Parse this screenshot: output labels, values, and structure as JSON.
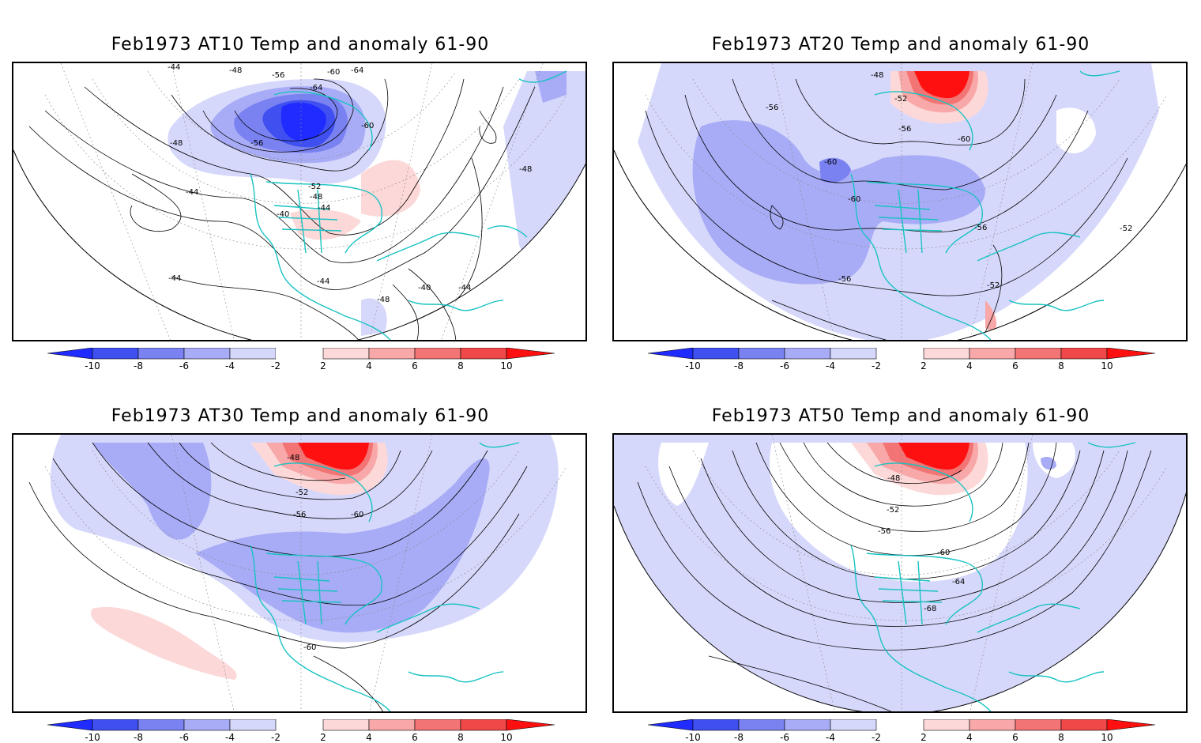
{
  "palette": {
    "neg10": "#1f2bff",
    "neg8": "#4050f0",
    "neg6": "#7a82f2",
    "neg4": "#a8acf6",
    "neg2": "#d6d8fb",
    "zero": "#ffffff",
    "pos2": "#fcd8d8",
    "pos4": "#f8a8a8",
    "pos6": "#f27474",
    "pos8": "#f04848",
    "pos10": "#ff1010",
    "coast": "#19c2c2"
  },
  "colorbar": {
    "labels": [
      "-10",
      "-8",
      "-6",
      "-4",
      "-2",
      "2",
      "4",
      "6",
      "8",
      "10"
    ]
  },
  "panels": [
    {
      "title": "Feb1973 AT10 Temp and anomaly 61-90",
      "contour_labels": [
        "-44",
        "-48",
        "-56",
        "-60",
        "-64",
        "-64",
        "-60",
        "-56",
        "-48",
        "-44",
        "-52",
        "-48",
        "-44",
        "-40",
        "-44",
        "-44",
        "-48",
        "-40",
        "-44",
        "-48"
      ]
    },
    {
      "title": "Feb1973 AT20 Temp and anomaly 61-90",
      "contour_labels": [
        "-48",
        "-52",
        "-56",
        "-56",
        "-60",
        "-60",
        "-60",
        "-56",
        "-56",
        "-52",
        "-52"
      ]
    },
    {
      "title": "Feb1973 AT30 Temp and anomaly 61-90",
      "contour_labels": [
        "-48",
        "-52",
        "-56",
        "-60",
        "-60"
      ]
    },
    {
      "title": "Feb1973 AT50 Temp and anomaly 61-90",
      "contour_labels": [
        "-48",
        "-52",
        "-56",
        "-60",
        "-64",
        "-68"
      ]
    }
  ]
}
